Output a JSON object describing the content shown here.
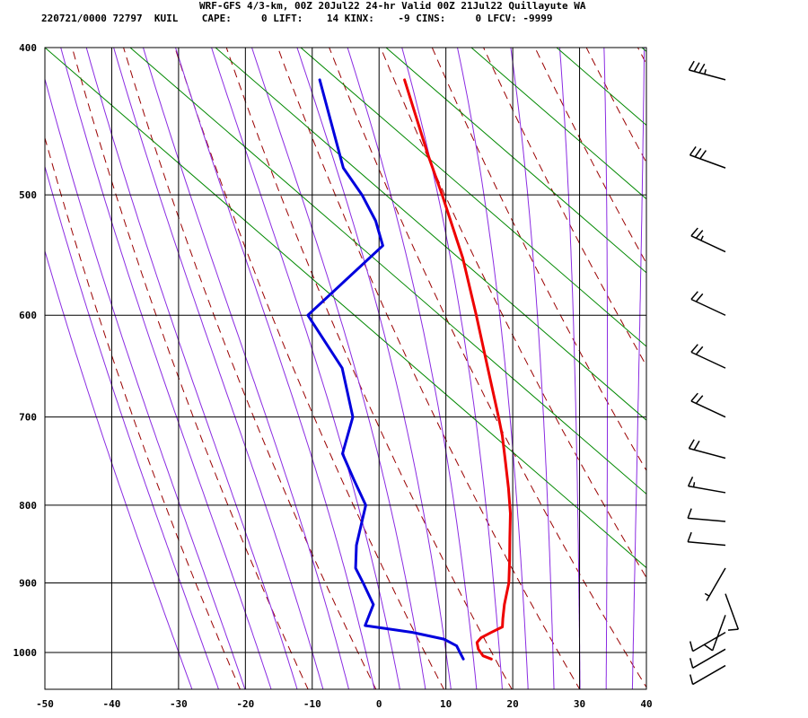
{
  "header": {
    "title": "WRF-GFS 4/3-km, 00Z 20Jul22 24-hr Valid 00Z 21Jul22 Quillayute WA",
    "stats": "220721/0000 72797  KUIL    CAPE:     0 LIFT:    14 KINX:    -9 CINS:     0 LFCV: -9999"
  },
  "chart_data": {
    "type": "skew-t",
    "title": "WRF-GFS 4/3-km, 00Z 20Jul22 24-hr Valid 00Z 21Jul22 Quillayute WA",
    "x_axis": {
      "label": "",
      "unit": "degC",
      "range": [
        -50,
        40
      ],
      "ticks": [
        -50,
        -40,
        -30,
        -20,
        -10,
        0,
        10,
        20,
        30,
        40
      ]
    },
    "y_axis": {
      "label": "",
      "unit": "hPa",
      "scale": "log",
      "range": [
        1050,
        400
      ],
      "ticks": [
        400,
        500,
        600,
        700,
        800,
        900,
        1000
      ]
    },
    "grid": true,
    "colors": {
      "temperature": "#ee0000",
      "dewpoint": "#0000dd",
      "dry_adiabats": "#9a0000",
      "moist_adiabats": "#8a2be2",
      "mixing_ratio": "#008800",
      "grid": "#000000",
      "wind_barbs": "#000000"
    },
    "series": [
      {
        "key": "temperature",
        "points": [
          [
            1010,
            17.1
          ],
          [
            1005,
            15.7
          ],
          [
            995,
            14.7
          ],
          [
            985,
            14.2
          ],
          [
            978,
            14.6
          ],
          [
            970,
            15.9
          ],
          [
            962,
            17.3
          ],
          [
            950,
            17.0
          ],
          [
            930,
            16.6
          ],
          [
            900,
            16.3
          ],
          [
            870,
            15.4
          ],
          [
            840,
            14.4
          ],
          [
            810,
            13.4
          ],
          [
            780,
            12.0
          ],
          [
            750,
            10.4
          ],
          [
            720,
            8.7
          ],
          [
            700,
            7.3
          ],
          [
            650,
            3.5
          ],
          [
            600,
            -0.6
          ],
          [
            550,
            -5.2
          ],
          [
            500,
            -11.1
          ],
          [
            470,
            -15.1
          ],
          [
            420,
            -21.9
          ]
        ]
      },
      {
        "key": "dewpoint",
        "points": [
          [
            1010,
            12.9
          ],
          [
            1000,
            12.1
          ],
          [
            990,
            11.3
          ],
          [
            980,
            9.1
          ],
          [
            970,
            4.1
          ],
          [
            960,
            -3.3
          ],
          [
            930,
            -3.0
          ],
          [
            900,
            -5.5
          ],
          [
            880,
            -7.3
          ],
          [
            850,
            -8.2
          ],
          [
            800,
            -8.6
          ],
          [
            770,
            -11.5
          ],
          [
            740,
            -14.4
          ],
          [
            700,
            -14.5
          ],
          [
            650,
            -18.3
          ],
          [
            600,
            -25.8
          ],
          [
            540,
            -17.7
          ],
          [
            520,
            -19.9
          ],
          [
            500,
            -23.1
          ],
          [
            480,
            -27.1
          ],
          [
            420,
            -34.6
          ]
        ]
      }
    ],
    "wind_barbs": [
      {
        "pressure": 420,
        "direction_deg": 255,
        "speed_kt": 35
      },
      {
        "pressure": 480,
        "direction_deg": 250,
        "speed_kt": 30
      },
      {
        "pressure": 545,
        "direction_deg": 245,
        "speed_kt": 25
      },
      {
        "pressure": 600,
        "direction_deg": 245,
        "speed_kt": 20
      },
      {
        "pressure": 650,
        "direction_deg": 245,
        "speed_kt": 20
      },
      {
        "pressure": 700,
        "direction_deg": 245,
        "speed_kt": 20
      },
      {
        "pressure": 745,
        "direction_deg": 255,
        "speed_kt": 20
      },
      {
        "pressure": 785,
        "direction_deg": 260,
        "speed_kt": 15
      },
      {
        "pressure": 820,
        "direction_deg": 265,
        "speed_kt": 10
      },
      {
        "pressure": 850,
        "direction_deg": 265,
        "speed_kt": 10
      },
      {
        "pressure": 880,
        "direction_deg": 330,
        "speed_kt": 5
      },
      {
        "pressure": 915,
        "direction_deg": 20,
        "speed_kt": 10
      },
      {
        "pressure": 945,
        "direction_deg": 340,
        "speed_kt": 10
      },
      {
        "pressure": 970,
        "direction_deg": 300,
        "speed_kt": 10
      },
      {
        "pressure": 995,
        "direction_deg": 300,
        "speed_kt": 10
      },
      {
        "pressure": 1020,
        "direction_deg": 300,
        "speed_kt": 10
      }
    ]
  }
}
